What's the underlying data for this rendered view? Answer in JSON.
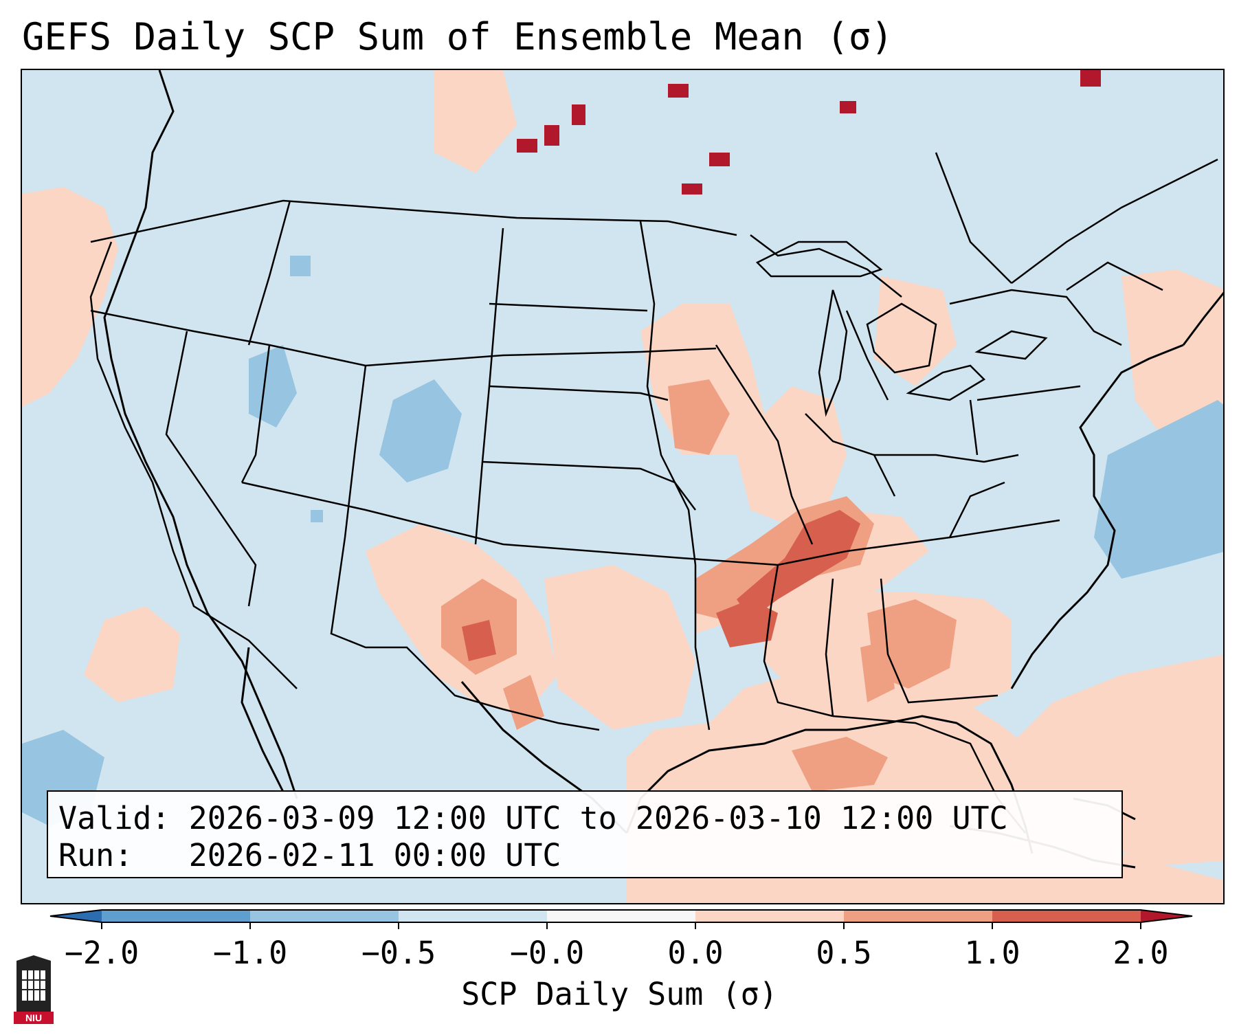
{
  "title": "GEFS Daily SCP Sum of Ensemble Mean (σ)",
  "info": {
    "valid_label": "Valid:",
    "valid_value": "2026-03-09 12:00 UTC to 2026-03-10 12:00 UTC",
    "run_label": "Run:",
    "run_value": "2026-02-11 00:00 UTC"
  },
  "colorbar": {
    "label": "SCP Daily Sum (σ)",
    "ticks": [
      "−2.0",
      "−1.0",
      "−0.5",
      "−0.0",
      "0.0",
      "0.5",
      "1.0",
      "2.0"
    ],
    "colors": [
      "#2c6cb0",
      "#5e9fcf",
      "#97c4e0",
      "#d1e5f0",
      "#f7f7f7",
      "#fbd6c4",
      "#f0a082",
      "#d6604d",
      "#b2182b"
    ]
  },
  "logo_text": "NIU",
  "map": {
    "background_class": "-0.0",
    "anomaly_regions": [
      {
        "region": "Mid-South / Tennessee Valley",
        "class": "1.0"
      },
      {
        "region": "Southern Plains / West Texas",
        "class": "1.0"
      },
      {
        "region": "Southeast US",
        "class": "0.5"
      },
      {
        "region": "Gulf of Mexico",
        "class": "0.0"
      },
      {
        "region": "Upper Midwest",
        "class": "0.5"
      },
      {
        "region": "Northern Plains / Canada",
        "class": "2.0"
      },
      {
        "region": "Central Rockies",
        "class": "-0.5"
      },
      {
        "region": "Western Atlantic",
        "class": "-0.5"
      }
    ]
  }
}
